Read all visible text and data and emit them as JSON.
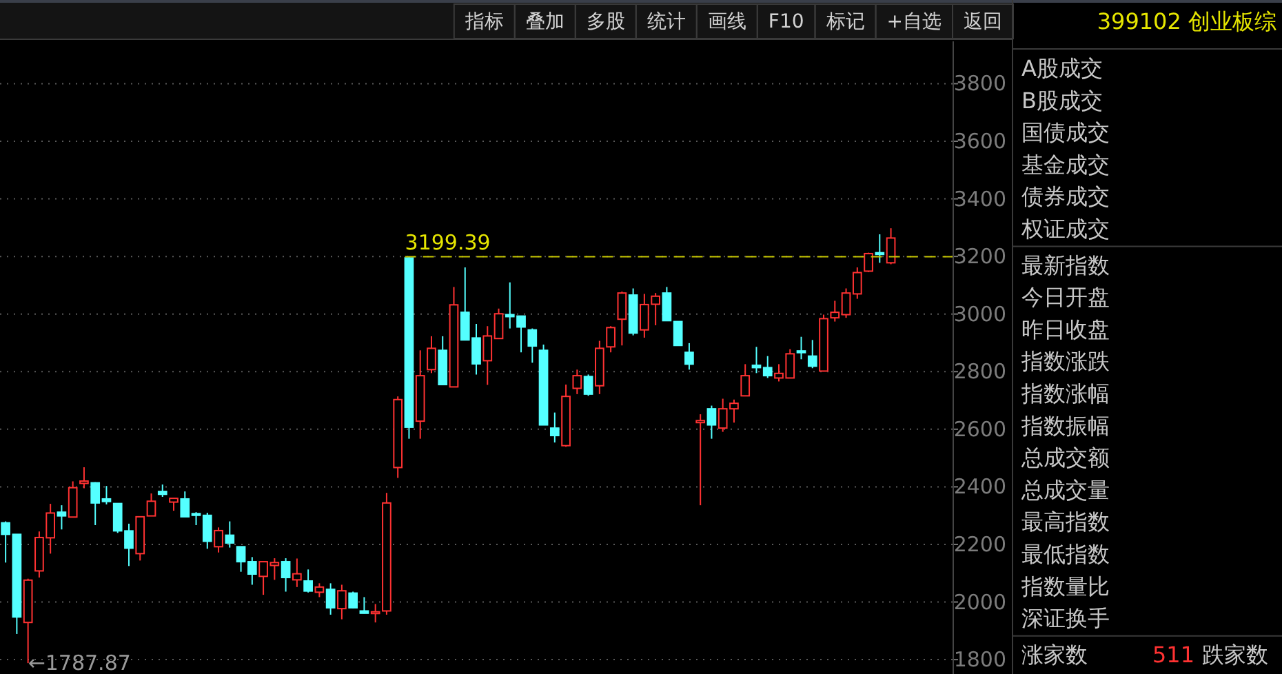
{
  "chart_data": [
    {
      "type": "other",
      "annotations": [
        "指标",
        "叠加",
        "多股",
        "统计",
        "画线",
        "F10",
        "标记",
        "+自选",
        "返回"
      ]
    },
    {
      "type": "candlestick",
      "categories": [
        null,
        null,
        null,
        null,
        null,
        null,
        null,
        null,
        null,
        null,
        null,
        null,
        null,
        null,
        null,
        null,
        null,
        null,
        null,
        null,
        null,
        null,
        null,
        null,
        null,
        null,
        null,
        null,
        null,
        null,
        null,
        null,
        null,
        null,
        null,
        null,
        null,
        null,
        null,
        null,
        null,
        null,
        null,
        null,
        null,
        null,
        null,
        null,
        null,
        null,
        null,
        null,
        null,
        null,
        null,
        null,
        null,
        null,
        null,
        null,
        null,
        null,
        null,
        null,
        null,
        null,
        null,
        null,
        null,
        null,
        null,
        null,
        null,
        null,
        null,
        null,
        null,
        null,
        null,
        null
      ],
      "ohlc": [
        [
          2275,
          2280,
          2137,
          2235
        ],
        [
          2235,
          2235,
          1889,
          1948
        ],
        [
          1929,
          2081,
          1787.87,
          2076
        ],
        [
          2108,
          2245,
          2085,
          2224
        ],
        [
          2223,
          2341,
          2168,
          2309
        ],
        [
          2312,
          2336,
          2252,
          2299
        ],
        [
          2295,
          2419,
          2295,
          2397
        ],
        [
          2412,
          2468,
          2395,
          2420
        ],
        [
          2414,
          2416,
          2267,
          2344
        ],
        [
          2358,
          2403,
          2339,
          2349
        ],
        [
          2342,
          2342,
          2240,
          2247
        ],
        [
          2247,
          2272,
          2125,
          2187
        ],
        [
          2168,
          2296,
          2144,
          2296
        ],
        [
          2299,
          2377,
          2299,
          2350
        ],
        [
          2384,
          2408,
          2365,
          2374
        ],
        [
          2347,
          2360,
          2317,
          2360
        ],
        [
          2358,
          2384,
          2296,
          2296
        ],
        [
          2307,
          2312,
          2267,
          2301
        ],
        [
          2301,
          2310,
          2185,
          2211
        ],
        [
          2192,
          2259,
          2172,
          2248
        ],
        [
          2232,
          2280,
          2189,
          2205
        ],
        [
          2192,
          2192,
          2105,
          2140
        ],
        [
          2140,
          2156,
          2060,
          2097
        ],
        [
          2089,
          2140,
          2025,
          2140
        ],
        [
          2127,
          2152,
          2077,
          2137
        ],
        [
          2140,
          2152,
          2036,
          2085
        ],
        [
          2077,
          2151,
          2052,
          2098
        ],
        [
          2073,
          2113,
          2033,
          2038
        ],
        [
          2034,
          2065,
          2017,
          2052
        ],
        [
          2044,
          2065,
          1956,
          1980
        ],
        [
          1977,
          2060,
          1940,
          2039
        ],
        [
          2031,
          2036,
          1978,
          1980
        ],
        [
          1969,
          2017,
          1960,
          1961
        ],
        [
          1960,
          1993,
          1929,
          1966
        ],
        [
          1969,
          2379,
          1956,
          2344
        ],
        [
          2467,
          2714,
          2431,
          2703
        ],
        [
          3195,
          3199.39,
          2567,
          2607
        ],
        [
          2628,
          2874,
          2567,
          2786
        ],
        [
          2807,
          2923,
          2795,
          2881
        ],
        [
          2874,
          2923,
          2755,
          2755
        ],
        [
          2747,
          3094,
          2747,
          3032
        ],
        [
          3006,
          3162,
          2910,
          2910
        ],
        [
          2917,
          2966,
          2790,
          2827
        ],
        [
          2838,
          2958,
          2754,
          2924
        ],
        [
          2915,
          3019,
          2915,
          3001
        ],
        [
          2998,
          3110,
          2950,
          2991
        ],
        [
          2993,
          2993,
          2867,
          2955
        ],
        [
          2945,
          2950,
          2831,
          2889
        ],
        [
          2874,
          2894,
          2615,
          2615
        ],
        [
          2604,
          2658,
          2554,
          2578
        ],
        [
          2543,
          2755,
          2539,
          2714
        ],
        [
          2742,
          2807,
          2722,
          2786
        ],
        [
          2783,
          2790,
          2716,
          2722
        ],
        [
          2751,
          2907,
          2722,
          2881
        ],
        [
          2886,
          2958,
          2867,
          2953
        ],
        [
          2982,
          3078,
          2891,
          3073
        ],
        [
          3066,
          3089,
          2926,
          2934
        ],
        [
          2945,
          3070,
          2918,
          3033
        ],
        [
          3034,
          3073,
          2961,
          3062
        ],
        [
          3073,
          3094,
          2977,
          2977
        ],
        [
          2974,
          2974,
          2891,
          2891
        ],
        [
          2867,
          2899,
          2807,
          2826
        ],
        [
          2623,
          2652,
          2336,
          2630
        ],
        [
          2671,
          2682,
          2567,
          2615
        ],
        [
          2604,
          2706,
          2591,
          2671
        ],
        [
          2671,
          2703,
          2623,
          2690
        ],
        [
          2716,
          2826,
          2716,
          2786
        ],
        [
          2822,
          2886,
          2795,
          2814
        ],
        [
          2814,
          2854,
          2778,
          2786
        ],
        [
          2778,
          2826,
          2766,
          2794
        ],
        [
          2778,
          2878,
          2778,
          2862
        ],
        [
          2872,
          2921,
          2843,
          2866
        ],
        [
          2854,
          2910,
          2812,
          2819
        ],
        [
          2802,
          2998,
          2802,
          2984
        ],
        [
          2987,
          3046,
          2974,
          3006
        ],
        [
          2998,
          3089,
          2987,
          3073
        ],
        [
          3070,
          3162,
          3053,
          3144
        ],
        [
          3149,
          3213,
          3146,
          3210
        ],
        [
          3213,
          3277,
          3178,
          3207
        ],
        [
          3178,
          3298,
          3173,
          3264
        ]
      ],
      "colors": [
        "#54ffff",
        "#54ffff",
        "#ff3232",
        "#ff3232",
        "#ff3232",
        "#54ffff",
        "#ff3232",
        "#ff3232",
        "#54ffff",
        "#54ffff",
        "#54ffff",
        "#54ffff",
        "#ff3232",
        "#ff3232",
        "#54ffff",
        "#ff3232",
        "#54ffff",
        "#54ffff",
        "#54ffff",
        "#ff3232",
        "#54ffff",
        "#54ffff",
        "#54ffff",
        "#ff3232",
        "#ff3232",
        "#54ffff",
        "#ff3232",
        "#54ffff",
        "#ff3232",
        "#54ffff",
        "#ff3232",
        "#54ffff",
        "#54ffff",
        "#ff3232",
        "#ff3232",
        "#ff3232",
        "#54ffff",
        "#ff3232",
        "#ff3232",
        "#54ffff",
        "#ff3232",
        "#54ffff",
        "#54ffff",
        "#ff3232",
        "#ff3232",
        "#54ffff",
        "#54ffff",
        "#54ffff",
        "#54ffff",
        "#54ffff",
        "#ff3232",
        "#ff3232",
        "#54ffff",
        "#ff3232",
        "#ff3232",
        "#ff3232",
        "#54ffff",
        "#ff3232",
        "#ff3232",
        "#54ffff",
        "#54ffff",
        "#54ffff",
        "#ff3232",
        "#54ffff",
        "#ff3232",
        "#ff3232",
        "#ff3232",
        "#54ffff",
        "#54ffff",
        "#ff3232",
        "#ff3232",
        "#54ffff",
        "#54ffff",
        "#ff3232",
        "#ff3232",
        "#ff3232",
        "#ff3232",
        "#ff3232",
        "#54ffff",
        "#ff3232"
      ],
      "ylim": [
        1750,
        3947
      ],
      "yticks": [
        1800,
        2000,
        2200,
        2400,
        2600,
        2800,
        3000,
        3200,
        3400,
        3600,
        3800
      ],
      "grid": "y",
      "ref_lines": [
        {
          "axis": "y",
          "value": 3199.39,
          "label": "3199.39",
          "color": "#c8c800",
          "line_style": "dashed"
        }
      ],
      "annotations": [
        "←1787.87"
      ]
    },
    {
      "type": "other",
      "title": "399102 创业板综",
      "annotations": [
        "A股成交",
        "B股成交",
        "国债成交",
        "基金成交",
        "债券成交",
        "权证成交",
        "最新指数",
        "今日开盘",
        "昨日收盘",
        "指数涨跌",
        "指数涨幅",
        "指数振幅",
        "总成交额",
        "总成交量",
        "最高指数",
        "最低指数",
        "指数量比",
        "深证换手",
        "涨家数",
        "511",
        "跌家数"
      ]
    }
  ]
}
